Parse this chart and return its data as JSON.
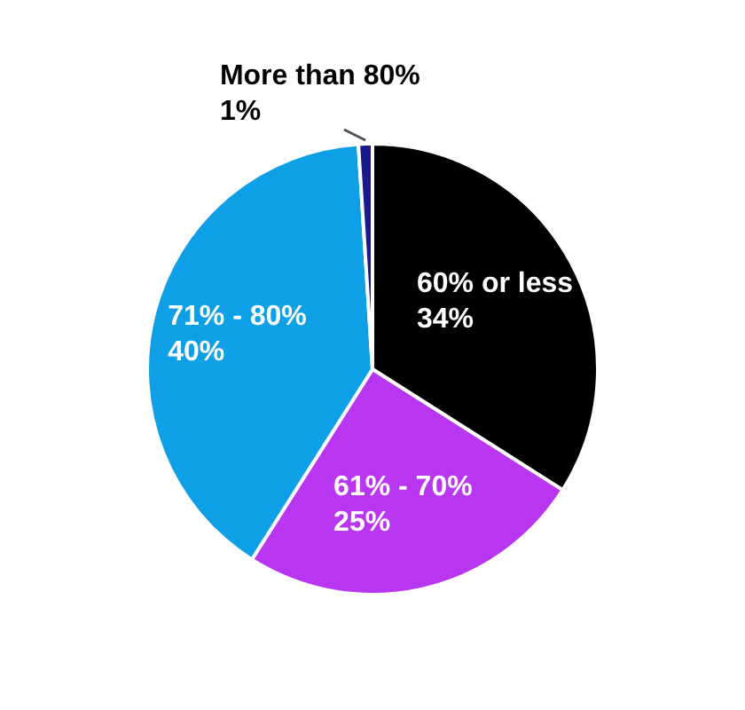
{
  "chart_data": {
    "type": "pie",
    "categories": [
      "60% or less",
      "61% - 70%",
      "71% - 80%",
      "More than 80%"
    ],
    "values": [
      34,
      25,
      40,
      1
    ],
    "colors": [
      "#000000",
      "#b936f0",
      "#0ea0e6",
      "#1a1a8c"
    ],
    "value_labels": [
      "34%",
      "25%",
      "40%",
      "1%"
    ],
    "legend": false
  }
}
